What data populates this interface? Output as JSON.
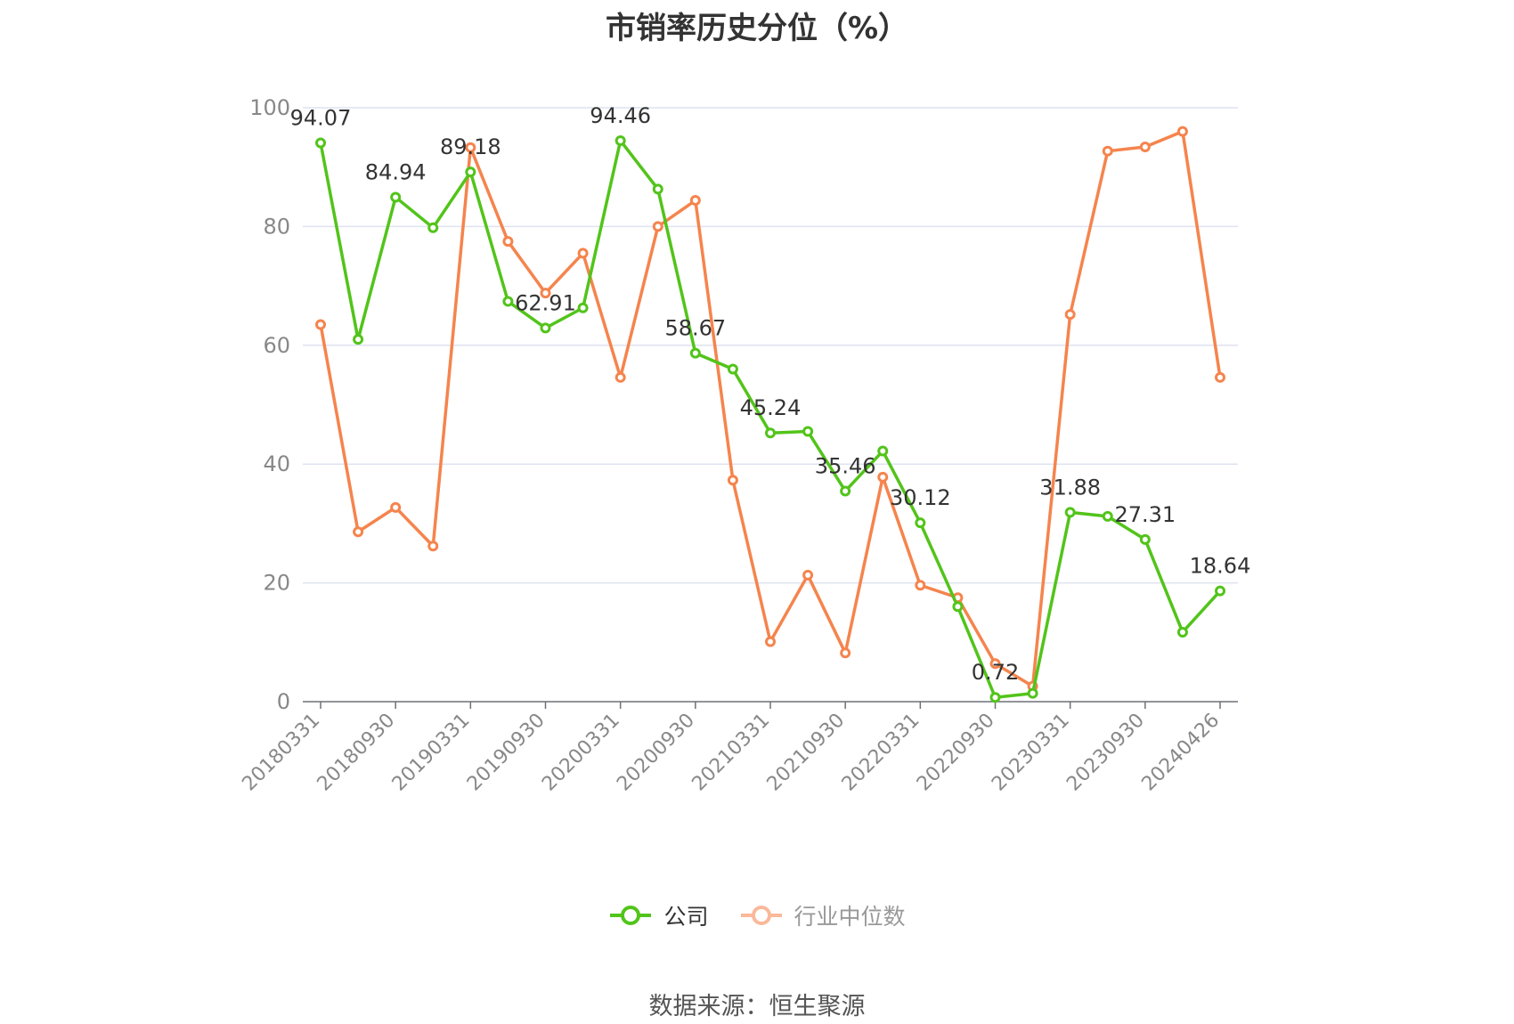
{
  "chart_data": {
    "type": "line",
    "title": "市销率历史分位（%）",
    "ylim": [
      0,
      100
    ],
    "yticks": [
      0,
      20,
      40,
      60,
      80,
      100
    ],
    "x_tick_labels": [
      "20180331",
      "20180930",
      "20190331",
      "20190930",
      "20200331",
      "20200930",
      "20210331",
      "20210930",
      "20220331",
      "20220930",
      "20230331",
      "20230930",
      "20240426"
    ],
    "x": [
      "20180331",
      "20180630",
      "20180930",
      "20181231",
      "20190331",
      "20190630",
      "20190930",
      "20191231",
      "20200331",
      "20200630",
      "20200930",
      "20201231",
      "20210331",
      "20210630",
      "20210930",
      "20211231",
      "20220331",
      "20220630",
      "20220930",
      "20221231",
      "20230331",
      "20230630",
      "20230930",
      "20231231",
      "20240426"
    ],
    "series": [
      {
        "name": "公司",
        "color": "#52c41a",
        "values": [
          94.07,
          61.0,
          84.94,
          79.8,
          89.18,
          67.4,
          62.91,
          66.3,
          94.46,
          86.3,
          58.67,
          56.0,
          45.24,
          45.5,
          35.46,
          42.2,
          30.12,
          16.0,
          0.72,
          1.4,
          31.88,
          31.2,
          27.31,
          11.7,
          18.64
        ],
        "labels": [
          "94.07",
          "",
          "84.94",
          "",
          "89.18",
          "",
          "62.91",
          "",
          "94.46",
          "",
          "58.67",
          "",
          "45.24",
          "",
          "35.46",
          "",
          "30.12",
          "",
          "0.72",
          "",
          "31.88",
          "",
          "27.31",
          "",
          "18.64"
        ]
      },
      {
        "name": "行业中位数",
        "color": "#f5844d",
        "values": [
          63.5,
          28.6,
          32.7,
          26.2,
          93.3,
          77.5,
          68.8,
          75.5,
          54.6,
          80.0,
          84.4,
          37.3,
          10.1,
          21.3,
          8.2,
          37.8,
          19.6,
          17.5,
          6.4,
          2.6,
          65.2,
          92.7,
          93.4,
          96.0,
          54.6
        ]
      }
    ],
    "legend_position": "bottom-center",
    "grid": "horizontal"
  },
  "legend": {
    "company_label": "公司",
    "industry_label": "行业中位数"
  },
  "source_text": "数据来源：恒生聚源"
}
